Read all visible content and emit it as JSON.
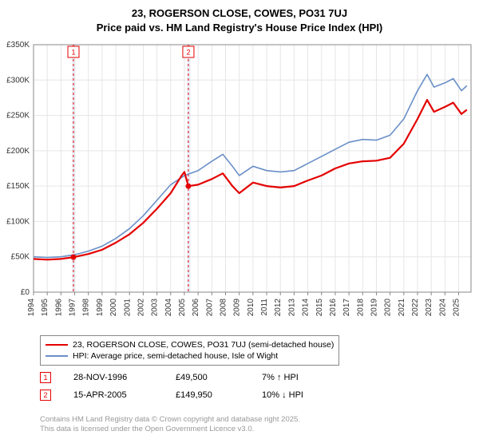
{
  "title_line1": "23, ROGERSON CLOSE, COWES, PO31 7UJ",
  "title_line2": "Price paid vs. HM Land Registry's House Price Index (HPI)",
  "chart": {
    "type": "line",
    "background_color": "#ffffff",
    "grid_color": "#e6e6e6",
    "axis_color": "#888888",
    "highlight_band_color": "#e8f0fa",
    "marker_line_color": "#e40000",
    "xlabel_fontsize": 10,
    "ylabel_fontsize": 10,
    "x_years": [
      1994,
      1995,
      1996,
      1997,
      1998,
      1999,
      2000,
      2001,
      2002,
      2003,
      2004,
      2005,
      2006,
      2007,
      2008,
      2009,
      2010,
      2011,
      2012,
      2013,
      2014,
      2015,
      2016,
      2017,
      2018,
      2019,
      2020,
      2021,
      2022,
      2023,
      2024,
      2025
    ],
    "y_ticks": [
      0,
      50000,
      100000,
      150000,
      200000,
      250000,
      300000,
      350000
    ],
    "y_tick_labels": [
      "£0",
      "£50K",
      "£100K",
      "£150K",
      "£200K",
      "£250K",
      "£300K",
      "£350K"
    ],
    "ylim": [
      0,
      350000
    ],
    "xlim": [
      1994,
      2025.9
    ],
    "highlight_bands": [
      {
        "from": 1996.8,
        "to": 1997.05
      },
      {
        "from": 2005.2,
        "to": 2005.45
      }
    ],
    "sale_markers": [
      {
        "x": 1996.91,
        "label": "1"
      },
      {
        "x": 2005.29,
        "label": "2"
      }
    ],
    "series": [
      {
        "name": "property",
        "color": "#e40000",
        "line_width": 2.2,
        "legend_label": "23, ROGERSON CLOSE, COWES, PO31 7UJ (semi-detached house)",
        "dot_points": [
          {
            "x": 1996.91,
            "y": 49500
          },
          {
            "x": 2005.29,
            "y": 149950
          }
        ],
        "points": [
          {
            "x": 1994.0,
            "y": 47000
          },
          {
            "x": 1995.0,
            "y": 46000
          },
          {
            "x": 1996.0,
            "y": 47000
          },
          {
            "x": 1996.91,
            "y": 49500
          },
          {
            "x": 1998.0,
            "y": 54000
          },
          {
            "x": 1999.0,
            "y": 60000
          },
          {
            "x": 2000.0,
            "y": 70000
          },
          {
            "x": 2001.0,
            "y": 82000
          },
          {
            "x": 2002.0,
            "y": 98000
          },
          {
            "x": 2003.0,
            "y": 118000
          },
          {
            "x": 2004.0,
            "y": 140000
          },
          {
            "x": 2004.8,
            "y": 165000
          },
          {
            "x": 2005.0,
            "y": 170000
          },
          {
            "x": 2005.29,
            "y": 149950
          },
          {
            "x": 2006.0,
            "y": 152000
          },
          {
            "x": 2007.0,
            "y": 160000
          },
          {
            "x": 2007.8,
            "y": 168000
          },
          {
            "x": 2008.5,
            "y": 150000
          },
          {
            "x": 2009.0,
            "y": 140000
          },
          {
            "x": 2010.0,
            "y": 155000
          },
          {
            "x": 2011.0,
            "y": 150000
          },
          {
            "x": 2012.0,
            "y": 148000
          },
          {
            "x": 2013.0,
            "y": 150000
          },
          {
            "x": 2014.0,
            "y": 158000
          },
          {
            "x": 2015.0,
            "y": 165000
          },
          {
            "x": 2016.0,
            "y": 175000
          },
          {
            "x": 2017.0,
            "y": 182000
          },
          {
            "x": 2018.0,
            "y": 185000
          },
          {
            "x": 2019.0,
            "y": 186000
          },
          {
            "x": 2020.0,
            "y": 190000
          },
          {
            "x": 2021.0,
            "y": 210000
          },
          {
            "x": 2022.0,
            "y": 245000
          },
          {
            "x": 2022.7,
            "y": 272000
          },
          {
            "x": 2023.2,
            "y": 255000
          },
          {
            "x": 2024.0,
            "y": 262000
          },
          {
            "x": 2024.6,
            "y": 268000
          },
          {
            "x": 2025.2,
            "y": 252000
          },
          {
            "x": 2025.6,
            "y": 258000
          }
        ]
      },
      {
        "name": "hpi",
        "color": "#6a8fc7",
        "line_width": 1.6,
        "legend_label": "HPI: Average price, semi-detached house, Isle of Wight",
        "points": [
          {
            "x": 1994.0,
            "y": 50000
          },
          {
            "x": 1995.0,
            "y": 49000
          },
          {
            "x": 1996.0,
            "y": 50000
          },
          {
            "x": 1997.0,
            "y": 53000
          },
          {
            "x": 1998.0,
            "y": 58000
          },
          {
            "x": 1999.0,
            "y": 65000
          },
          {
            "x": 2000.0,
            "y": 76000
          },
          {
            "x": 2001.0,
            "y": 90000
          },
          {
            "x": 2002.0,
            "y": 108000
          },
          {
            "x": 2003.0,
            "y": 130000
          },
          {
            "x": 2004.0,
            "y": 152000
          },
          {
            "x": 2005.0,
            "y": 165000
          },
          {
            "x": 2006.0,
            "y": 172000
          },
          {
            "x": 2007.0,
            "y": 185000
          },
          {
            "x": 2007.8,
            "y": 195000
          },
          {
            "x": 2008.5,
            "y": 178000
          },
          {
            "x": 2009.0,
            "y": 165000
          },
          {
            "x": 2010.0,
            "y": 178000
          },
          {
            "x": 2011.0,
            "y": 172000
          },
          {
            "x": 2012.0,
            "y": 170000
          },
          {
            "x": 2013.0,
            "y": 172000
          },
          {
            "x": 2014.0,
            "y": 182000
          },
          {
            "x": 2015.0,
            "y": 192000
          },
          {
            "x": 2016.0,
            "y": 202000
          },
          {
            "x": 2017.0,
            "y": 212000
          },
          {
            "x": 2018.0,
            "y": 216000
          },
          {
            "x": 2019.0,
            "y": 215000
          },
          {
            "x": 2020.0,
            "y": 222000
          },
          {
            "x": 2021.0,
            "y": 245000
          },
          {
            "x": 2022.0,
            "y": 285000
          },
          {
            "x": 2022.7,
            "y": 308000
          },
          {
            "x": 2023.2,
            "y": 290000
          },
          {
            "x": 2024.0,
            "y": 296000
          },
          {
            "x": 2024.6,
            "y": 302000
          },
          {
            "x": 2025.2,
            "y": 285000
          },
          {
            "x": 2025.6,
            "y": 292000
          }
        ]
      }
    ]
  },
  "legend": {
    "series_labels": [
      "23, ROGERSON CLOSE, COWES, PO31 7UJ (semi-detached house)",
      "HPI: Average price, semi-detached house, Isle of Wight"
    ],
    "series_colors": [
      "#e40000",
      "#6a8fc7"
    ]
  },
  "datapoints": [
    {
      "marker": "1",
      "date": "28-NOV-1996",
      "price": "£49,500",
      "delta": "7% ↑ HPI"
    },
    {
      "marker": "2",
      "date": "15-APR-2005",
      "price": "£149,950",
      "delta": "10% ↓ HPI"
    }
  ],
  "attribution_line1": "Contains HM Land Registry data © Crown copyright and database right 2025.",
  "attribution_line2": "This data is licensed under the Open Government Licence v3.0."
}
